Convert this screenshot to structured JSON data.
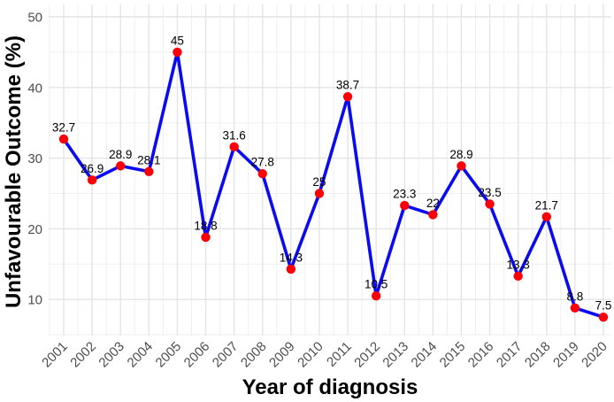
{
  "chart_data": {
    "type": "line",
    "title": "",
    "xlabel": "Year of diagnosis",
    "ylabel": "Unfavourable Outcome (%)",
    "x": [
      "2001",
      "2002",
      "2003",
      "2004",
      "2005",
      "2006",
      "2007",
      "2008",
      "2009",
      "2010",
      "2011",
      "2012",
      "2013",
      "2014",
      "2015",
      "2016",
      "2017",
      "2018",
      "2019",
      "2020"
    ],
    "values": [
      32.7,
      26.9,
      28.9,
      28.1,
      45,
      18.8,
      31.6,
      27.8,
      14.3,
      25,
      38.7,
      10.5,
      23.3,
      22,
      28.9,
      23.5,
      13.3,
      21.7,
      8.8,
      7.5
    ],
    "point_labels": [
      "32.7",
      "26.9",
      "28.9",
      "28.1",
      "45",
      "18.8",
      "31.6",
      "27.8",
      "14.3",
      "25",
      "38.7",
      "10.5",
      "23.3",
      "22",
      "28.9",
      "23.5",
      "13.3",
      "21.7",
      "8.8",
      "7.5"
    ],
    "y_ticks": [
      10,
      20,
      30,
      40,
      50
    ],
    "y_minor_ticks": [
      5,
      15,
      25,
      35,
      45
    ],
    "ylim": [
      5,
      51.8
    ],
    "grid": "major+minor",
    "legend": "none",
    "colors": {
      "line": "#0b0bf2",
      "point": "#fb0007",
      "point_label": "#000000",
      "tick_label": "#4d4d4d",
      "grid_major": "#e4e4e4",
      "grid_minor": "#efefef",
      "background": "#ffffff"
    }
  }
}
